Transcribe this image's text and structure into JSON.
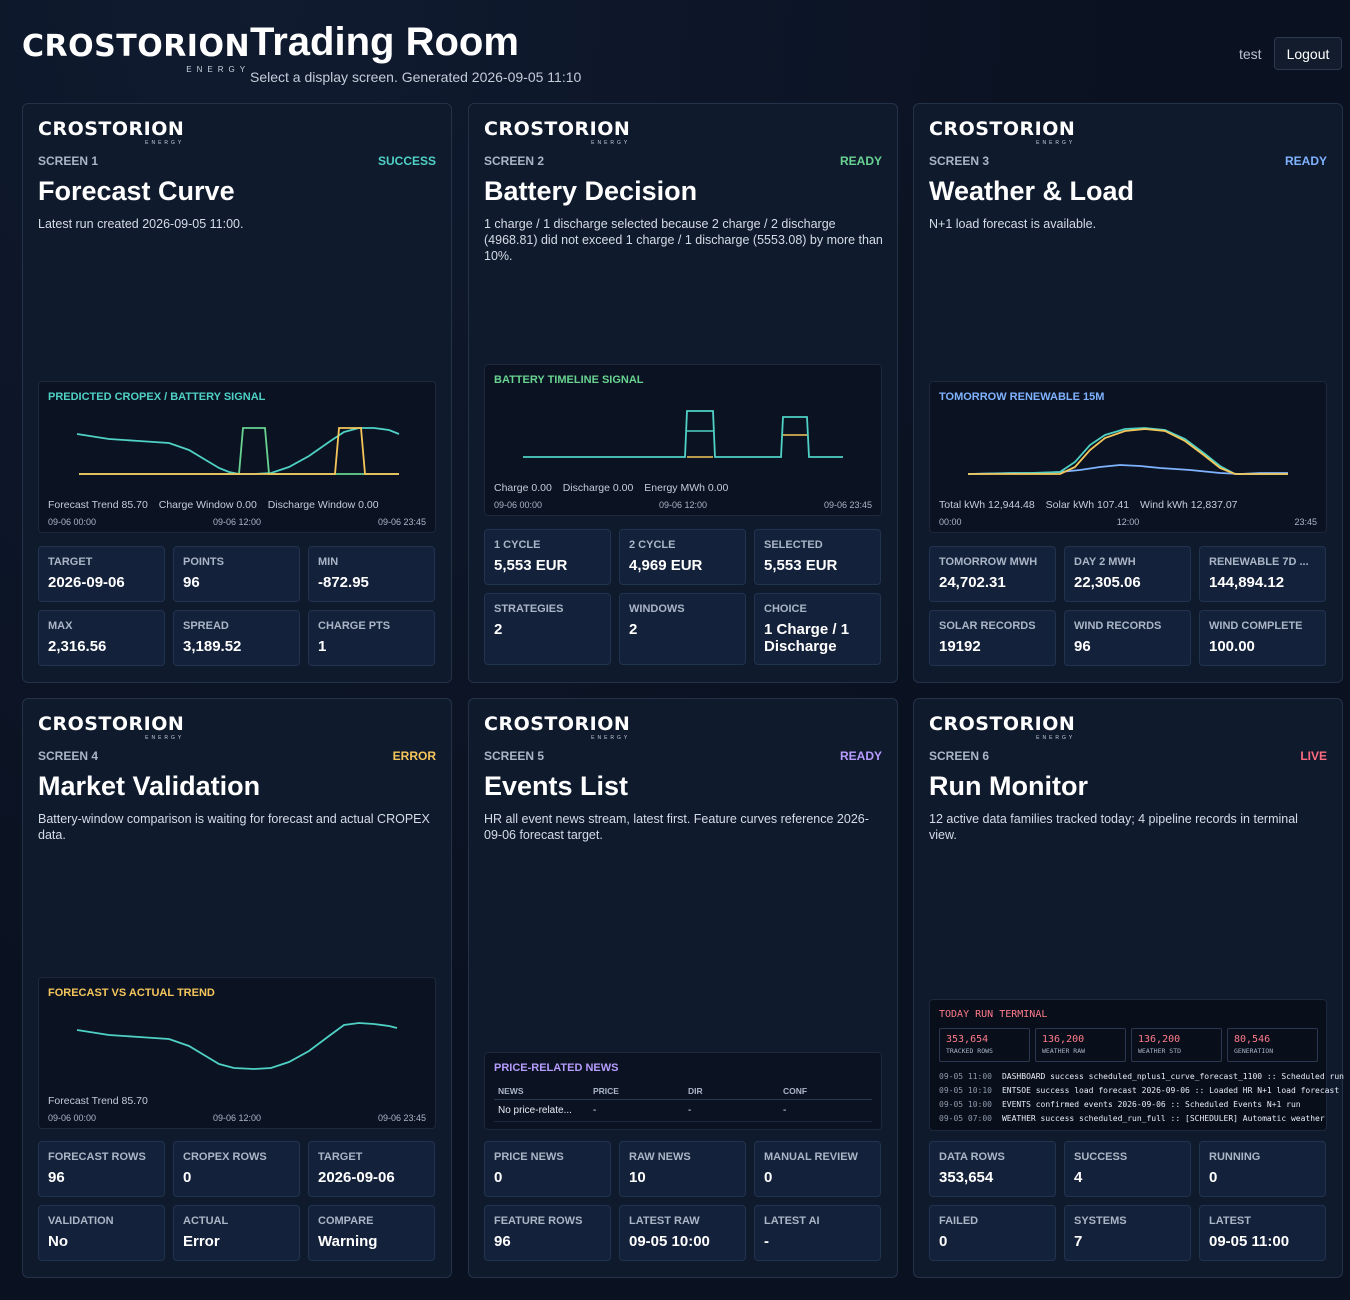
{
  "header": {
    "logo_word": "CROSTORION",
    "logo_sub": "ENERGY",
    "title": "Trading Room",
    "subtitle": "Select a display screen. Generated 2026-09-05 11:10",
    "user": "test",
    "logout_label": "Logout"
  },
  "colors": {
    "cyan": "#4fd1c5",
    "yellow": "#f6c65b",
    "green": "#68d391",
    "blue": "#7fb2ff",
    "purple": "#b79cff",
    "pink": "#ff6b81",
    "orange": "#f6c65b"
  },
  "cards": [
    {
      "screen": "SCREEN 1",
      "status": "SUCCESS",
      "title": "Forecast Curve",
      "desc": "Latest run created 2026-09-05 11:00.",
      "panel": {
        "title": "PREDICTED CROPEX / BATTERY SIGNAL",
        "legend": [
          "Forecast Trend 85.70",
          "Charge Window 0.00",
          "Discharge Window 0.00"
        ],
        "axis": [
          "09-06 00:00",
          "09-06 12:00",
          "09-06 23:45"
        ]
      },
      "stats": [
        {
          "label": "TARGET",
          "value": "2026-09-06"
        },
        {
          "label": "POINTS",
          "value": "96"
        },
        {
          "label": "MIN",
          "value": "-872.95"
        },
        {
          "label": "MAX",
          "value": "2,316.56"
        },
        {
          "label": "SPREAD",
          "value": "3,189.52"
        },
        {
          "label": "CHARGE PTS",
          "value": "1"
        }
      ]
    },
    {
      "screen": "SCREEN 2",
      "status": "READY",
      "title": "Battery Decision",
      "desc": "1 charge / 1 discharge selected because 2 charge / 2 discharge (4968.81) did not exceed 1 charge / 1 discharge (5553.08) by more than 10%.",
      "panel": {
        "title": "BATTERY TIMELINE SIGNAL",
        "legend": [
          "Charge 0.00",
          "Discharge 0.00",
          "Energy MWh 0.00"
        ],
        "axis": [
          "09-06 00:00",
          "09-06 12:00",
          "09-06 23:45"
        ]
      },
      "stats": [
        {
          "label": "1 CYCLE",
          "value": "5,553 EUR"
        },
        {
          "label": "2 CYCLE",
          "value": "4,969 EUR"
        },
        {
          "label": "SELECTED",
          "value": "5,553 EUR"
        },
        {
          "label": "STRATEGIES",
          "value": "2"
        },
        {
          "label": "WINDOWS",
          "value": "2"
        },
        {
          "label": "CHOICE",
          "value": "1 Charge / 1 Discharge"
        }
      ]
    },
    {
      "screen": "SCREEN 3",
      "status": "READY",
      "title": "Weather & Load",
      "desc": "N+1 load forecast is available.",
      "panel": {
        "title": "TOMORROW RENEWABLE 15M",
        "legend": [
          "Total kWh 12,944.48",
          "Solar kWh 107.41",
          "Wind kWh 12,837.07"
        ],
        "axis": [
          "00:00",
          "12:00",
          "23:45"
        ]
      },
      "stats": [
        {
          "label": "TOMORROW MWH",
          "value": "24,702.31"
        },
        {
          "label": "DAY 2 MWH",
          "value": "22,305.06"
        },
        {
          "label": "RENEWABLE 7D ...",
          "value": "144,894.12"
        },
        {
          "label": "SOLAR RECORDS",
          "value": "19192"
        },
        {
          "label": "WIND RECORDS",
          "value": "96"
        },
        {
          "label": "WIND COMPLETE",
          "value": "100.00"
        }
      ]
    },
    {
      "screen": "SCREEN 4",
      "status": "ERROR",
      "title": "Market Validation",
      "desc": "Battery-window comparison is waiting for forecast and actual CROPEX data.",
      "panel": {
        "title": "FORECAST VS ACTUAL TREND",
        "legend": [
          "Forecast Trend 85.70"
        ],
        "axis": [
          "09-06 00:00",
          "09-06 12:00",
          "09-06 23:45"
        ]
      },
      "stats": [
        {
          "label": "FORECAST ROWS",
          "value": "96"
        },
        {
          "label": "CROPEX ROWS",
          "value": "0"
        },
        {
          "label": "TARGET",
          "value": "2026-09-06"
        },
        {
          "label": "VALIDATION",
          "value": "No"
        },
        {
          "label": "ACTUAL",
          "value": "Error"
        },
        {
          "label": "COMPARE",
          "value": "Warning"
        }
      ]
    },
    {
      "screen": "SCREEN 5",
      "status": "READY",
      "title": "Events List",
      "desc": "HR all event news stream, latest first. Feature curves reference 2026-09-06 forecast target.",
      "panel": {
        "title": "PRICE-RELATED NEWS",
        "columns": [
          "NEWS",
          "PRICE",
          "DIR",
          "CONF"
        ],
        "row": [
          "No price-relate...",
          "-",
          "-",
          "-"
        ]
      },
      "stats": [
        {
          "label": "PRICE NEWS",
          "value": "0"
        },
        {
          "label": "RAW NEWS",
          "value": "10"
        },
        {
          "label": "MANUAL REVIEW",
          "value": "0"
        },
        {
          "label": "FEATURE ROWS",
          "value": "96"
        },
        {
          "label": "LATEST RAW",
          "value": "09-05 10:00"
        },
        {
          "label": "LATEST AI",
          "value": "-"
        }
      ]
    },
    {
      "screen": "SCREEN 6",
      "status": "LIVE",
      "title": "Run Monitor",
      "desc": "12 active data families tracked today; 4 pipeline records in terminal view.",
      "panel": {
        "title": "TODAY RUN TERMINAL",
        "boxes": [
          {
            "value": "353,654",
            "label": "TRACKED ROWS"
          },
          {
            "value": "136,200",
            "label": "WEATHER RAW"
          },
          {
            "value": "136,200",
            "label": "WEATHER STD"
          },
          {
            "value": "80,546",
            "label": "GENERATION"
          }
        ],
        "lines": [
          {
            "ts": "09-05 11:00",
            "text": "DASHBOARD success scheduled_nplus1_curve_forecast_1100 :: Scheduled run"
          },
          {
            "ts": "09-05 10:10",
            "text": "ENTSOE success load forecast 2026-09-06 :: Loaded HR N+1 load forecast"
          },
          {
            "ts": "09-05 10:00",
            "text": "EVENTS confirmed events 2026-09-06 :: Scheduled Events N+1 run"
          },
          {
            "ts": "09-05 07:00",
            "text": "WEATHER success scheduled_run_full :: [SCHEDULER] Automatic weather"
          }
        ]
      },
      "stats": [
        {
          "label": "DATA ROWS",
          "value": "353,654"
        },
        {
          "label": "SUCCESS",
          "value": "4"
        },
        {
          "label": "RUNNING",
          "value": "0"
        },
        {
          "label": "FAILED",
          "value": "0"
        },
        {
          "label": "SYSTEMS",
          "value": "7"
        },
        {
          "label": "LATEST",
          "value": "09-05 11:00"
        }
      ]
    }
  ]
}
